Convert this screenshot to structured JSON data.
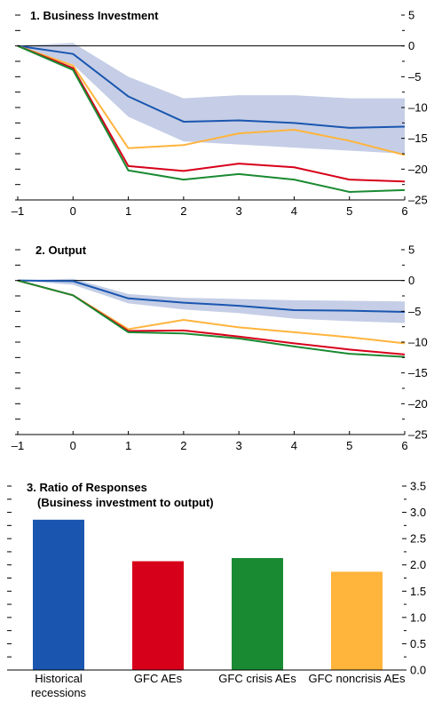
{
  "colors": {
    "historical": "#1a56b0",
    "gfc_aes": "#d7001a",
    "gfc_crisis": "#1a8a32",
    "gfc_noncrisis": "#ffb43c",
    "band": "#c5cee6"
  },
  "chart_data": [
    {
      "type": "line",
      "title": "1. Business Investment",
      "x": [
        -1,
        0,
        1,
        2,
        3,
        4,
        5,
        6
      ],
      "xticks": [
        "–1",
        "0",
        "1",
        "2",
        "3",
        "4",
        "5",
        "6"
      ],
      "ylim": [
        -25,
        5
      ],
      "yticks": [
        5,
        0,
        -5,
        -10,
        -15,
        -20,
        -25
      ],
      "ytick_labels": [
        "5",
        "0",
        "–5",
        "–10",
        "–15",
        "–20",
        "–25"
      ],
      "band": {
        "upper": [
          0,
          0.5,
          -5,
          -8.5,
          -8,
          -8,
          -8.5,
          -8.5
        ],
        "lower": [
          0,
          -3,
          -11.5,
          -15.5,
          -16,
          -16.5,
          -17,
          -17.5
        ]
      },
      "series": [
        {
          "key": "historical",
          "values": [
            0,
            -1.3,
            -8.2,
            -12.3,
            -12.1,
            -12.5,
            -13.3,
            -13.1
          ]
        },
        {
          "key": "gfc_noncrisis",
          "values": [
            0,
            -3.2,
            -16.6,
            -16.1,
            -14.2,
            -13.6,
            -15.4,
            -17.7
          ]
        },
        {
          "key": "gfc_aes",
          "values": [
            0,
            -3.6,
            -19.5,
            -20.3,
            -19.1,
            -19.7,
            -21.7,
            -22
          ]
        },
        {
          "key": "gfc_crisis",
          "values": [
            0,
            -3.9,
            -20.2,
            -21.7,
            -20.8,
            -21.7,
            -23.7,
            -23.4
          ]
        }
      ]
    },
    {
      "type": "line",
      "title": "2. Output",
      "x": [
        -1,
        0,
        1,
        2,
        3,
        4,
        5,
        6
      ],
      "xticks": [
        "–1",
        "0",
        "1",
        "2",
        "3",
        "4",
        "5",
        "6"
      ],
      "ylim": [
        -25,
        5
      ],
      "yticks": [
        5,
        0,
        -5,
        -10,
        -15,
        -20,
        -25
      ],
      "ytick_labels": [
        "5",
        "0",
        "–5",
        "–10",
        "–15",
        "–20",
        "–25"
      ],
      "band": {
        "upper": [
          0,
          0.3,
          -2.2,
          -2.8,
          -3,
          -3.2,
          -3.3,
          -3.4
        ],
        "lower": [
          0,
          -0.7,
          -3.7,
          -4.7,
          -5.3,
          -6.2,
          -6.6,
          -6.9
        ]
      },
      "series": [
        {
          "key": "historical",
          "values": [
            0,
            -0.1,
            -2.9,
            -3.6,
            -4.1,
            -4.8,
            -4.9,
            -5.1
          ]
        },
        {
          "key": "gfc_noncrisis",
          "values": [
            0,
            -2.4,
            -7.9,
            -6.4,
            -7.6,
            -8.4,
            -9.2,
            -10.2
          ]
        },
        {
          "key": "gfc_aes",
          "values": [
            0,
            -2.4,
            -8.2,
            -8.1,
            -9.1,
            -10.2,
            -11.2,
            -12
          ]
        },
        {
          "key": "gfc_crisis",
          "values": [
            0,
            -2.4,
            -8.4,
            -8.6,
            -9.4,
            -10.7,
            -11.9,
            -12.4
          ]
        }
      ]
    },
    {
      "type": "bar",
      "title": "3. Ratio of Responses",
      "subtitle": "(Business investment to output)",
      "categories": [
        [
          "Historical",
          "recessions"
        ],
        [
          "GFC AEs"
        ],
        [
          "GFC crisis AEs"
        ],
        [
          "GFC noncrisis AEs"
        ]
      ],
      "keys": [
        "historical",
        "gfc_aes",
        "gfc_crisis",
        "gfc_noncrisis"
      ],
      "values": [
        2.86,
        2.07,
        2.13,
        1.87
      ],
      "ylim": [
        0,
        3.5
      ],
      "yticks": [
        3.5,
        3.0,
        2.5,
        2.0,
        1.5,
        1.0,
        0.5,
        0.0
      ],
      "ytick_labels": [
        "3.5",
        "3.0",
        "2.5",
        "2.0",
        "1.5",
        "1.0",
        "0.5",
        "0.0"
      ]
    }
  ]
}
